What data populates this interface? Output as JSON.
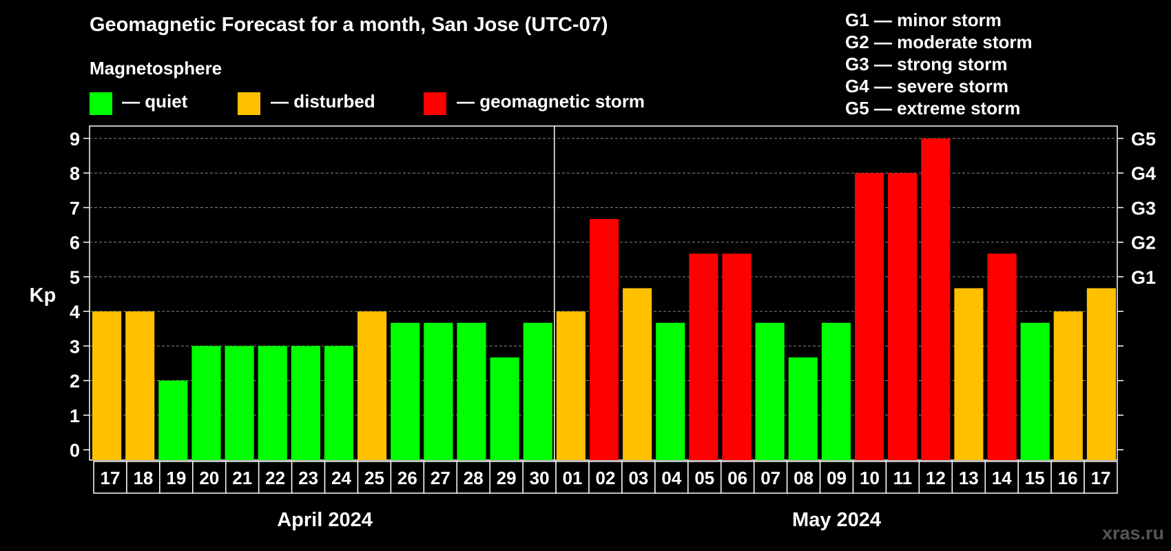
{
  "title": "Geomagnetic Forecast for a month, San Jose (UTC-07)",
  "legend": {
    "heading": "Magnetosphere",
    "items": [
      {
        "label": "— quiet",
        "color": "#00ff00"
      },
      {
        "label": "— disturbed",
        "color": "#ffc000"
      },
      {
        "label": "— geomagnetic storm",
        "color": "#ff0000"
      }
    ]
  },
  "storm_scale": [
    "G1 — minor storm",
    "G2 — moderate storm",
    "G3 — strong storm",
    "G4 — severe storm",
    "G5 — extreme storm"
  ],
  "watermark": "xras.ru",
  "chart_data": {
    "type": "bar",
    "ylabel": "Kp",
    "ylim": [
      0,
      9
    ],
    "yticks": [
      "0",
      "1",
      "2",
      "3",
      "4",
      "5",
      "6",
      "7",
      "8",
      "9"
    ],
    "right_ticks": [
      {
        "value": 5,
        "label": "G1"
      },
      {
        "value": 6,
        "label": "G2"
      },
      {
        "value": 7,
        "label": "G3"
      },
      {
        "value": 8,
        "label": "G4"
      },
      {
        "value": 9,
        "label": "G5"
      }
    ],
    "grid": "horizontal dashed",
    "categories": [
      "17",
      "18",
      "19",
      "20",
      "21",
      "22",
      "23",
      "24",
      "25",
      "26",
      "27",
      "28",
      "29",
      "30",
      "01",
      "02",
      "03",
      "04",
      "05",
      "06",
      "07",
      "08",
      "09",
      "10",
      "11",
      "12",
      "13",
      "14",
      "15",
      "16",
      "17"
    ],
    "values": [
      4,
      4,
      2,
      3,
      3,
      3,
      3,
      3,
      4,
      3.67,
      3.67,
      3.67,
      2.67,
      3.67,
      4,
      6.67,
      4.67,
      3.67,
      5.67,
      5.67,
      3.67,
      2.67,
      3.67,
      8,
      8,
      9,
      4.67,
      5.67,
      3.67,
      4,
      4.67
    ],
    "bar_colors": [
      "#ffc000",
      "#ffc000",
      "#00ff00",
      "#00ff00",
      "#00ff00",
      "#00ff00",
      "#00ff00",
      "#00ff00",
      "#ffc000",
      "#00ff00",
      "#00ff00",
      "#00ff00",
      "#00ff00",
      "#00ff00",
      "#ffc000",
      "#ff0000",
      "#ffc000",
      "#00ff00",
      "#ff0000",
      "#ff0000",
      "#00ff00",
      "#00ff00",
      "#00ff00",
      "#ff0000",
      "#ff0000",
      "#ff0000",
      "#ffc000",
      "#ff0000",
      "#00ff00",
      "#ffc000",
      "#ffc000"
    ],
    "months": [
      {
        "label": "April 2024",
        "start": 0,
        "end": 13
      },
      {
        "label": "May 2024",
        "start": 14,
        "end": 30
      }
    ]
  }
}
